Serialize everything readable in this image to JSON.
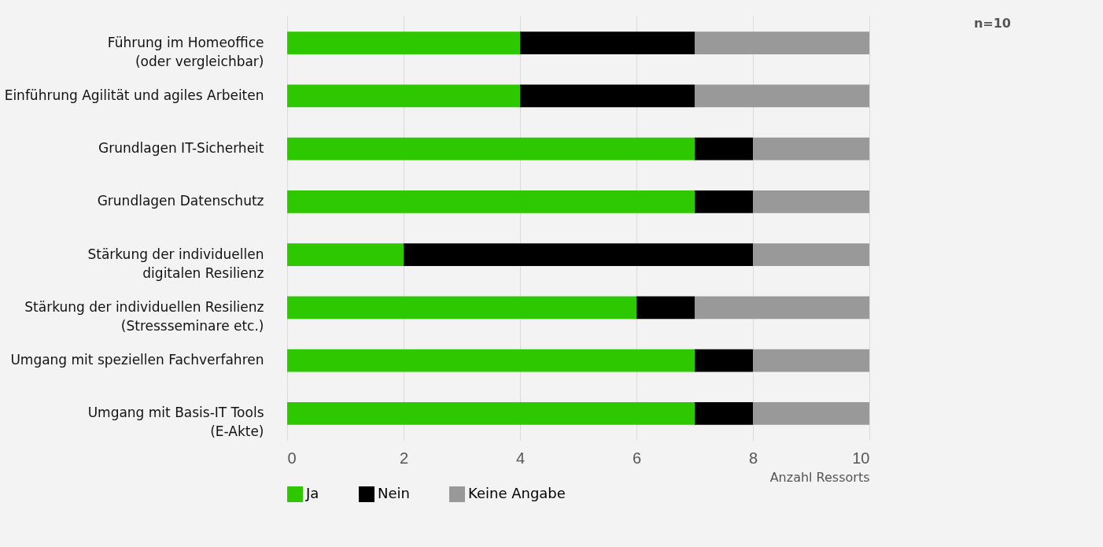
{
  "chart_data": {
    "type": "bar",
    "orientation": "horizontal",
    "stacked": true,
    "categories": [
      "Führung im Homeoffice\n(oder vergleichbar)",
      "Einführung Agilität und agiles Arbeiten",
      "Grundlagen IT-Sicherheit",
      "Grundlagen Datenschutz",
      "Stärkung der individuellen\ndigitalen Resilienz",
      "Stärkung der individuellen Resilienz\n(Stressseminare etc.)",
      "Umgang mit speziellen Fachverfahren",
      "Umgang mit Basis-IT Tools\n(E-Akte)"
    ],
    "series": [
      {
        "name": "Ja",
        "color": "#2dc800",
        "values": [
          4,
          4,
          7,
          7,
          2,
          6,
          7,
          7
        ]
      },
      {
        "name": "Nein",
        "color": "#000000",
        "values": [
          3,
          3,
          1,
          1,
          6,
          1,
          1,
          1
        ]
      },
      {
        "name": "Keine Angabe",
        "color": "#999999",
        "values": [
          3,
          3,
          2,
          2,
          2,
          3,
          2,
          2
        ]
      }
    ],
    "xlim": [
      0,
      10
    ],
    "xticks": [
      0,
      2,
      4,
      6,
      8,
      10
    ],
    "xlabel": "Anzahl Ressorts",
    "grid": "x",
    "legend": "bottom",
    "annotations": [
      "n=10"
    ]
  }
}
